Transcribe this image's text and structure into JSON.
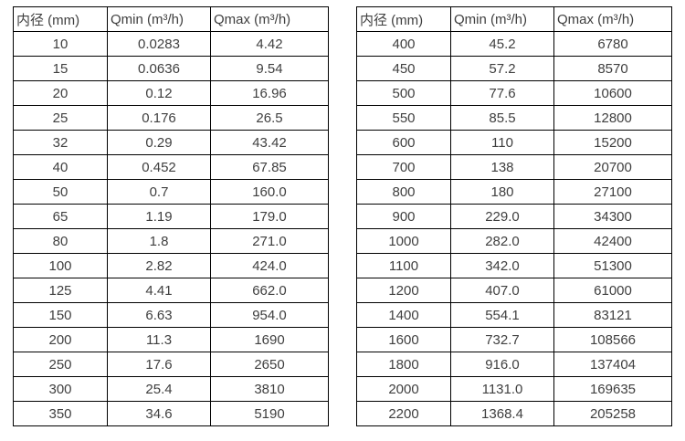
{
  "page": {
    "background_color": "#ffffff",
    "text_color": "#3f3f3f",
    "border_color": "#000000"
  },
  "tables": [
    {
      "name": "flow-spec-table-small-diameters",
      "headers": [
        "内径 (mm)",
        "Qmin (m³/h)",
        "Qmax (m³/h)"
      ],
      "rows": [
        [
          "10",
          "0.0283",
          "4.42"
        ],
        [
          "15",
          "0.0636",
          "9.54"
        ],
        [
          "20",
          "0.12",
          "16.96"
        ],
        [
          "25",
          "0.176",
          "26.5"
        ],
        [
          "32",
          "0.29",
          "43.42"
        ],
        [
          "40",
          "0.452",
          "67.85"
        ],
        [
          "50",
          "0.7",
          "160.0"
        ],
        [
          "65",
          "1.19",
          "179.0"
        ],
        [
          "80",
          "1.8",
          "271.0"
        ],
        [
          "100",
          "2.82",
          "424.0"
        ],
        [
          "125",
          "4.41",
          "662.0"
        ],
        [
          "150",
          "6.63",
          "954.0"
        ],
        [
          "200",
          "11.3",
          "1690"
        ],
        [
          "250",
          "17.6",
          "2650"
        ],
        [
          "300",
          "25.4",
          "3810"
        ],
        [
          "350",
          "34.6",
          "5190"
        ]
      ]
    },
    {
      "name": "flow-spec-table-large-diameters",
      "headers": [
        "内径 (mm)",
        "Qmin (m³/h)",
        "Qmax (m³/h)"
      ],
      "rows": [
        [
          "400",
          "45.2",
          "6780"
        ],
        [
          "450",
          "57.2",
          "8570"
        ],
        [
          "500",
          "77.6",
          "10600"
        ],
        [
          "550",
          "85.5",
          "12800"
        ],
        [
          "600",
          "110",
          "15200"
        ],
        [
          "700",
          "138",
          "20700"
        ],
        [
          "800",
          "180",
          "27100"
        ],
        [
          "900",
          "229.0",
          "34300"
        ],
        [
          "1000",
          "282.0",
          "42400"
        ],
        [
          "1100",
          "342.0",
          "51300"
        ],
        [
          "1200",
          "407.0",
          "61000"
        ],
        [
          "1400",
          "554.1",
          "83121"
        ],
        [
          "1600",
          "732.7",
          "108566"
        ],
        [
          "1800",
          "916.0",
          "137404"
        ],
        [
          "2000",
          "1131.0",
          "169635"
        ],
        [
          "2200",
          "1368.4",
          "205258"
        ]
      ]
    }
  ]
}
